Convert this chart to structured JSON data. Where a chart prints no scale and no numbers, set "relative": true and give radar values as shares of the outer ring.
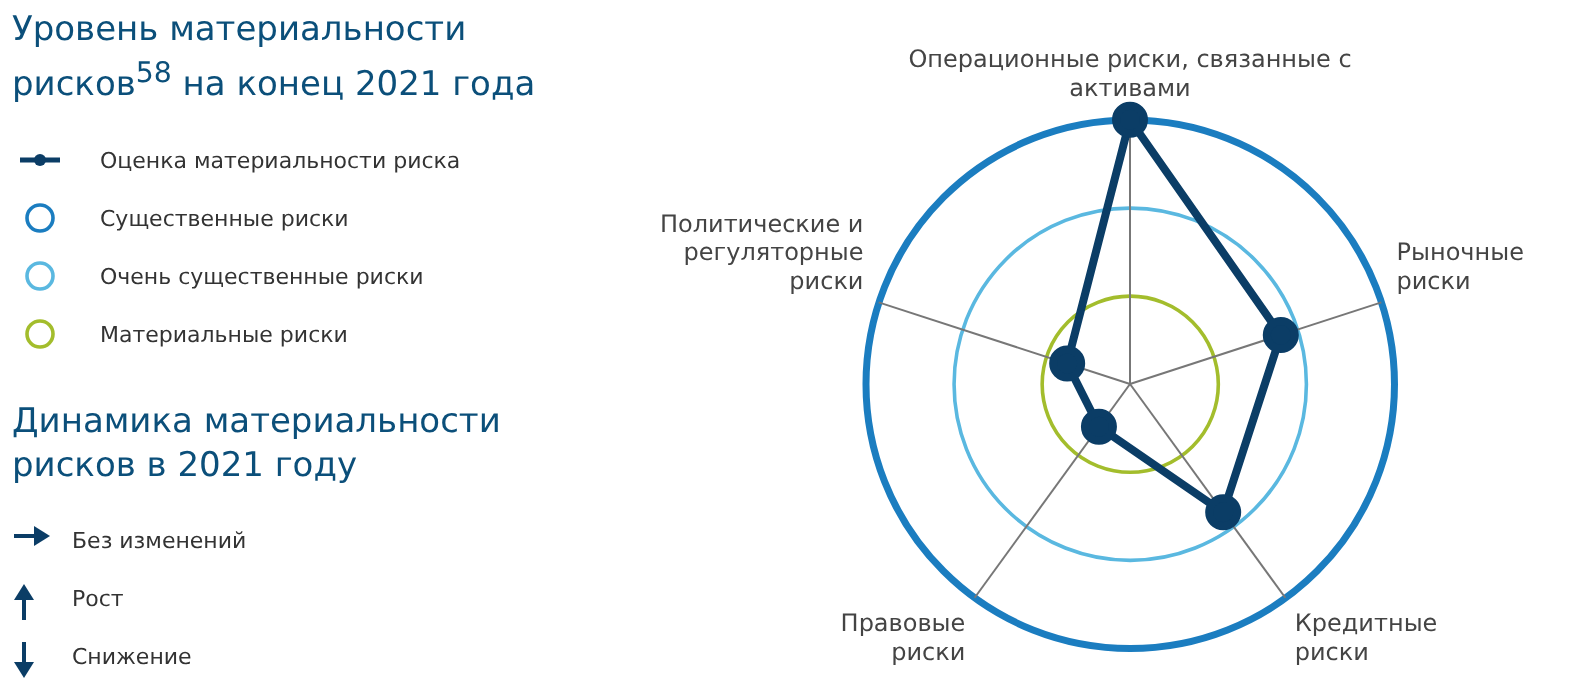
{
  "chart_data": {
    "type": "radar",
    "title": "Уровень материальности рисков$^{58}$ на конец 2021 года",
    "relative": true,
    "legend": "left",
    "categories": [
      "Операционные риски, связанные с активами",
      "Рыночные риски",
      "Кредитные риски",
      "Правовые риски",
      "Политические и регуляторные риски"
    ],
    "series": [
      {
        "name": "Оценка материальности риска",
        "color": "#0b3d66",
        "values": [
          1,
          0.6,
          0.6,
          0.2,
          0.25
        ]
      }
    ],
    "marker": "circle",
    "annotations": [
      "Существенные риски",
      "Очень существенные риски",
      "Материальные риски",
      "Динамика материальности рисков в 2021 году",
      "Без изменений",
      "Рост",
      "Снижение"
    ]
  }
}
